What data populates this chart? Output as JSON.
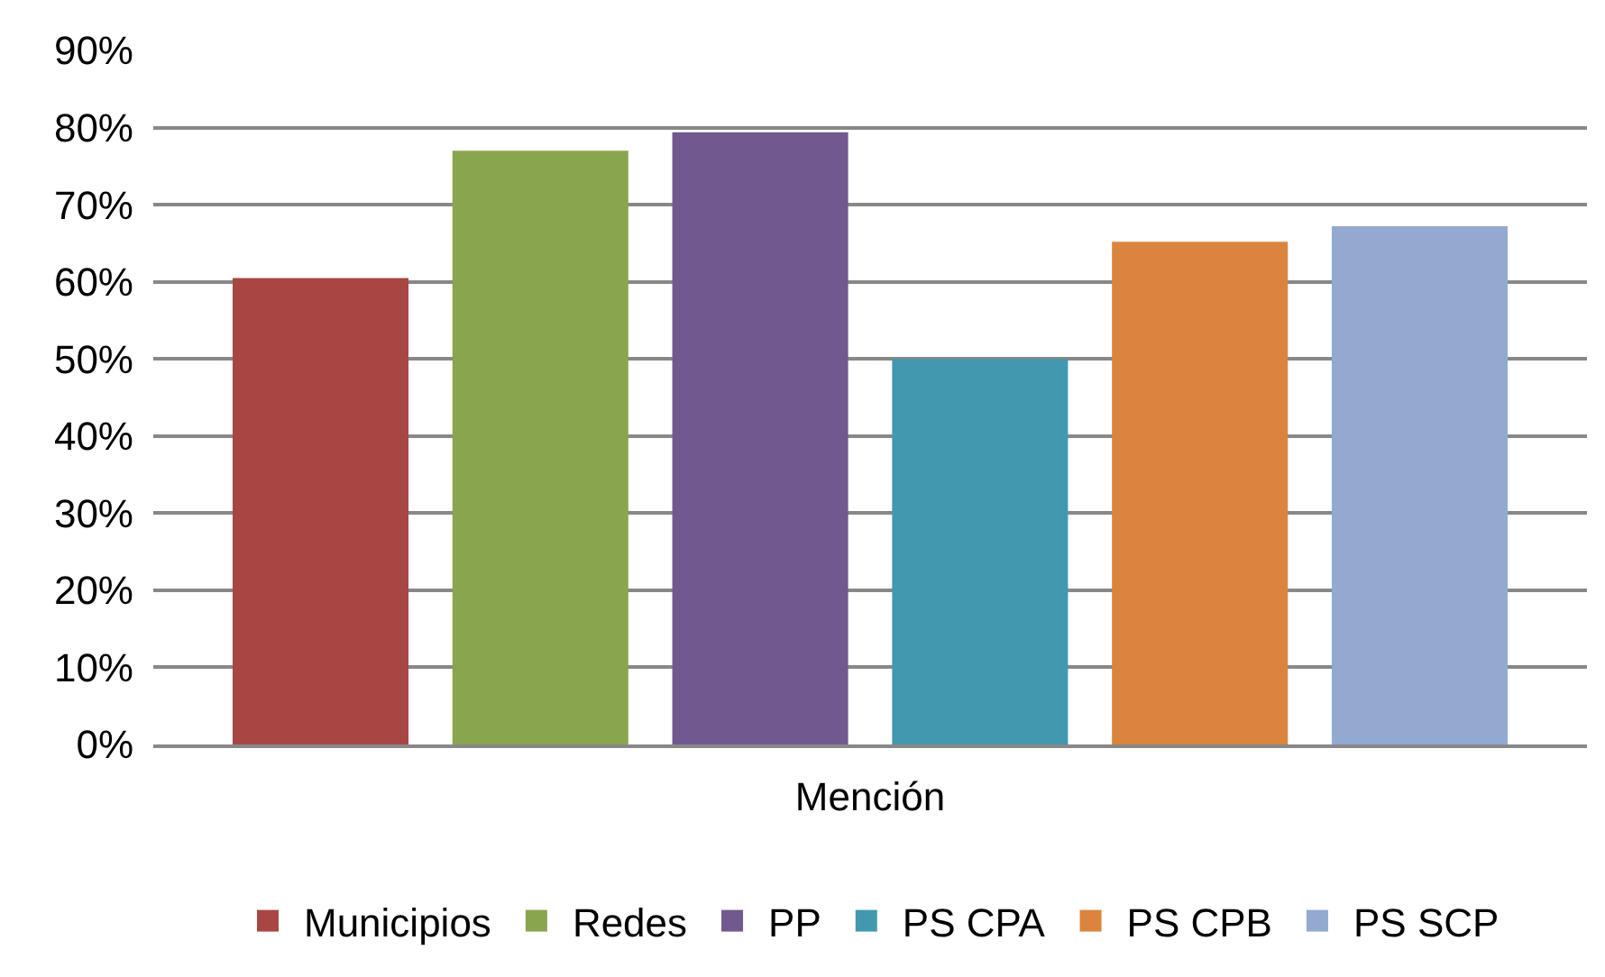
{
  "chart_data": {
    "type": "bar",
    "categories": [
      "Mención"
    ],
    "series": [
      {
        "name": "Municipios",
        "color": "#a84644",
        "values": [
          60.5
        ]
      },
      {
        "name": "Redes",
        "color": "#89a54e",
        "values": [
          77
        ]
      },
      {
        "name": "PP",
        "color": "#71588f",
        "values": [
          79.4
        ]
      },
      {
        "name": "PS CPA",
        "color": "#4198af",
        "values": [
          50
        ]
      },
      {
        "name": "PS CPB",
        "color": "#db843d",
        "values": [
          65.2
        ]
      },
      {
        "name": "PS SCP",
        "color": "#93a9cf",
        "values": [
          67.2
        ]
      }
    ],
    "ylim": [
      0,
      90
    ],
    "yticks": [
      {
        "value": 0,
        "label": "0%"
      },
      {
        "value": 10,
        "label": "10%"
      },
      {
        "value": 20,
        "label": "20%"
      },
      {
        "value": 30,
        "label": "30%"
      },
      {
        "value": 40,
        "label": "40%"
      },
      {
        "value": 50,
        "label": "50%"
      },
      {
        "value": 60,
        "label": "60%"
      },
      {
        "value": 70,
        "label": "70%"
      },
      {
        "value": 80,
        "label": "80%"
      },
      {
        "value": 90,
        "label": "90%"
      }
    ],
    "grid": "y",
    "legend": "bottom"
  }
}
